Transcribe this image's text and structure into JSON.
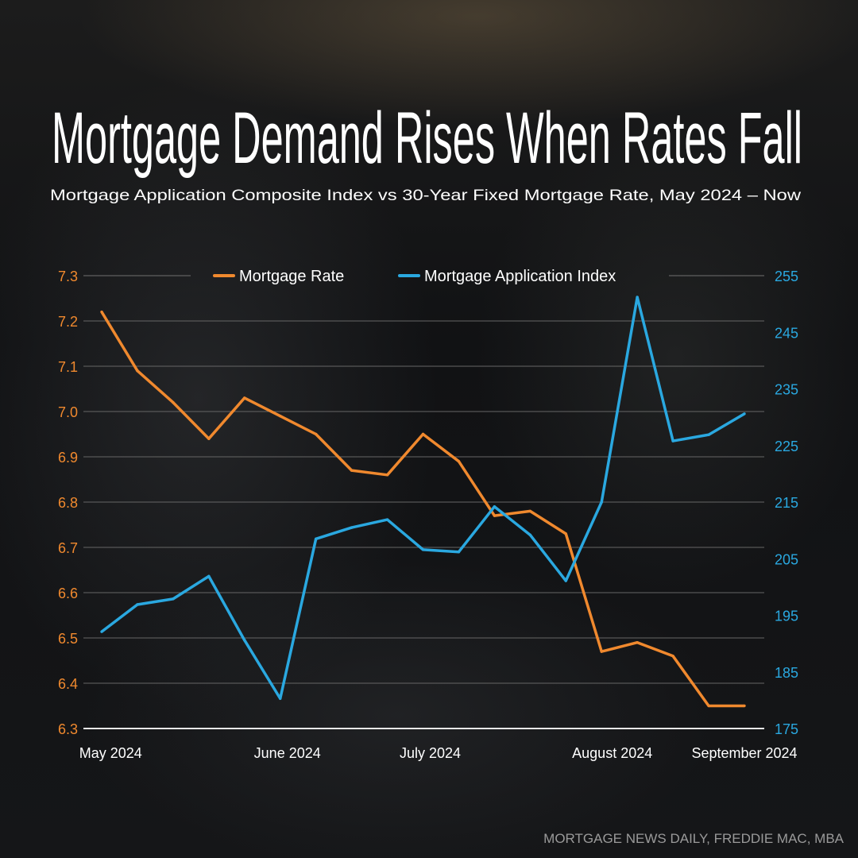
{
  "title": "Mortgage Demand Rises When Rates Fall",
  "subtitle": "Mortgage Application Composite Index vs 30-Year Fixed Mortgage Rate, May 2024 – Now",
  "source": "MORTGAGE NEWS DAILY, FREDDIE MAC, MBA",
  "colors": {
    "rate": "#f0892e",
    "index": "#2aa8e0",
    "text": "#ffffff",
    "source": "#9a9a9a"
  },
  "chart_data": {
    "type": "line",
    "title": "Mortgage Demand Rises When Rates Fall",
    "x_tick_labels": [
      {
        "label": "May 2024",
        "index": 0.25
      },
      {
        "label": "June 2024",
        "index": 5.2
      },
      {
        "label": "July 2024",
        "index": 9.2
      },
      {
        "label": "August 2024",
        "index": 14.3
      },
      {
        "label": "September 2024",
        "index": 18
      }
    ],
    "left_axis": {
      "label": "Mortgage Rate",
      "ylim": [
        6.3,
        7.3
      ],
      "ticks": [
        "7.3",
        "7.2",
        "7.1",
        "7.0",
        "6.9",
        "6.8",
        "6.7",
        "6.6",
        "6.5",
        "6.4",
        "6.3"
      ]
    },
    "right_axis": {
      "label": "Mortgage Application Index",
      "ylim": [
        175,
        255
      ],
      "ticks": [
        "255",
        "245",
        "235",
        "225",
        "215",
        "205",
        "195",
        "185",
        "175"
      ]
    },
    "legend": {
      "placement": "top-center"
    },
    "grid": true,
    "series": [
      {
        "name": "Mortgage Rate",
        "axis": "left",
        "values": [
          7.22,
          7.09,
          7.02,
          6.94,
          7.03,
          6.99,
          6.95,
          6.87,
          6.86,
          6.95,
          6.89,
          6.77,
          6.78,
          6.73,
          6.47,
          6.49,
          6.46,
          6.35,
          6.35
        ]
      },
      {
        "name": "Mortgage Application Index",
        "axis": "right",
        "values": [
          192.1,
          196.9,
          197.9,
          201.9,
          190.6,
          180.3,
          208.5,
          210.5,
          211.9,
          206.6,
          206.2,
          214.2,
          209.2,
          201.1,
          215.0,
          251.2,
          225.8,
          226.9,
          230.6
        ]
      }
    ]
  }
}
